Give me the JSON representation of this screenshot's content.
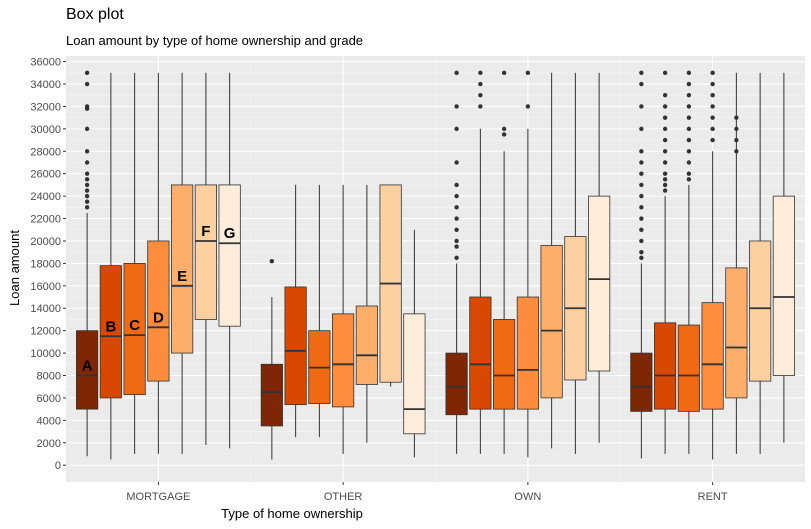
{
  "title": "Box plot",
  "subtitle": "Loan amount by type of home ownership and grade",
  "chart_data": {
    "type": "box",
    "title": "Box plot",
    "subtitle": "Loan amount by type of home ownership and grade",
    "xlabel": "Type of home ownership",
    "ylabel": "Loan amount",
    "ylim": [
      -1500,
      36500
    ],
    "yticks": [
      0,
      2000,
      4000,
      6000,
      8000,
      10000,
      12000,
      14000,
      16000,
      18000,
      20000,
      22000,
      24000,
      26000,
      28000,
      30000,
      32000,
      34000,
      36000
    ],
    "grid": true,
    "legend": "none",
    "categories": [
      "MORTGAGE",
      "OTHER",
      "OWN",
      "RENT"
    ],
    "grades": [
      "A",
      "B",
      "C",
      "D",
      "E",
      "F",
      "G"
    ],
    "grade_colors": [
      "#7f2704",
      "#d94801",
      "#f16913",
      "#fd8d3c",
      "#fdae6b",
      "#fdd0a2",
      "#feeddb"
    ],
    "boxes": [
      {
        "category": "MORTGAGE",
        "grade": "A",
        "min": 800,
        "q1": 5000,
        "median": 8000,
        "q3": 12000,
        "max": 22500,
        "outliers": [
          23000,
          23500,
          24000,
          24500,
          25000,
          25500,
          26000,
          27000,
          28000,
          30000,
          31800,
          32000,
          34000,
          35000
        ]
      },
      {
        "category": "MORTGAGE",
        "grade": "B",
        "min": 500,
        "q1": 6000,
        "median": 11500,
        "q3": 17800,
        "max": 35000,
        "outliers": []
      },
      {
        "category": "MORTGAGE",
        "grade": "C",
        "min": 1000,
        "q1": 6300,
        "median": 11600,
        "q3": 18000,
        "max": 35000,
        "outliers": []
      },
      {
        "category": "MORTGAGE",
        "grade": "D",
        "min": 1000,
        "q1": 7500,
        "median": 12300,
        "q3": 20000,
        "max": 35000,
        "outliers": []
      },
      {
        "category": "MORTGAGE",
        "grade": "E",
        "min": 1000,
        "q1": 10000,
        "median": 16000,
        "q3": 25000,
        "max": 35000,
        "outliers": []
      },
      {
        "category": "MORTGAGE",
        "grade": "F",
        "min": 1800,
        "q1": 13000,
        "median": 20000,
        "q3": 25000,
        "max": 35000,
        "outliers": []
      },
      {
        "category": "MORTGAGE",
        "grade": "G",
        "min": 1500,
        "q1": 12400,
        "median": 19800,
        "q3": 25000,
        "max": 35000,
        "outliers": []
      },
      {
        "category": "OTHER",
        "grade": "A",
        "min": 500,
        "q1": 3500,
        "median": 6500,
        "q3": 9000,
        "max": 15000,
        "outliers": [
          18200
        ]
      },
      {
        "category": "OTHER",
        "grade": "B",
        "min": 2500,
        "q1": 5400,
        "median": 10200,
        "q3": 15900,
        "max": 25000,
        "outliers": []
      },
      {
        "category": "OTHER",
        "grade": "C",
        "min": 2500,
        "q1": 5500,
        "median": 8700,
        "q3": 12000,
        "max": 25000,
        "outliers": []
      },
      {
        "category": "OTHER",
        "grade": "D",
        "min": 1000,
        "q1": 5200,
        "median": 9000,
        "q3": 13500,
        "max": 25000,
        "outliers": []
      },
      {
        "category": "OTHER",
        "grade": "E",
        "min": 2000,
        "q1": 7200,
        "median": 9800,
        "q3": 14200,
        "max": 25000,
        "outliers": []
      },
      {
        "category": "OTHER",
        "grade": "F",
        "min": 7000,
        "q1": 7400,
        "median": 16200,
        "q3": 25000,
        "max": 25000,
        "outliers": []
      },
      {
        "category": "OTHER",
        "grade": "G",
        "min": 700,
        "q1": 2800,
        "median": 5000,
        "q3": 13500,
        "max": 21000,
        "outliers": []
      },
      {
        "category": "OWN",
        "grade": "A",
        "min": 1000,
        "q1": 4500,
        "median": 7000,
        "q3": 10000,
        "max": 18000,
        "outliers": [
          18500,
          19500,
          20000,
          21000,
          22000,
          23000,
          24000,
          25000,
          27000,
          30000,
          32000,
          35000
        ]
      },
      {
        "category": "OWN",
        "grade": "B",
        "min": 1000,
        "q1": 5000,
        "median": 9000,
        "q3": 15000,
        "max": 30000,
        "outliers": [
          32000,
          33000,
          34000,
          35000
        ]
      },
      {
        "category": "OWN",
        "grade": "C",
        "min": 1000,
        "q1": 5000,
        "median": 8000,
        "q3": 13000,
        "max": 28000,
        "outliers": [
          29500,
          30000,
          35000
        ]
      },
      {
        "category": "OWN",
        "grade": "D",
        "min": 700,
        "q1": 5000,
        "median": 8500,
        "q3": 15000,
        "max": 30000,
        "outliers": [
          32000,
          35000
        ]
      },
      {
        "category": "OWN",
        "grade": "E",
        "min": 1500,
        "q1": 6000,
        "median": 12000,
        "q3": 19600,
        "max": 35000,
        "outliers": []
      },
      {
        "category": "OWN",
        "grade": "F",
        "min": 1000,
        "q1": 7600,
        "median": 14000,
        "q3": 20400,
        "max": 35000,
        "outliers": []
      },
      {
        "category": "OWN",
        "grade": "G",
        "min": 2000,
        "q1": 8400,
        "median": 16600,
        "q3": 24000,
        "max": 35000,
        "outliers": []
      },
      {
        "category": "RENT",
        "grade": "A",
        "min": 600,
        "q1": 4800,
        "median": 7000,
        "q3": 10000,
        "max": 18000,
        "outliers": [
          18500,
          19000,
          20000,
          21000,
          22000,
          23000,
          24000,
          25000,
          26000,
          27000,
          28000,
          30000,
          32000,
          34000,
          35000
        ]
      },
      {
        "category": "RENT",
        "grade": "B",
        "min": 1000,
        "q1": 5000,
        "median": 8000,
        "q3": 12700,
        "max": 24000,
        "outliers": [
          24500,
          25000,
          25500,
          26000,
          27000,
          28000,
          29000,
          30000,
          31000,
          32000,
          33000,
          35000
        ]
      },
      {
        "category": "RENT",
        "grade": "C",
        "min": 1000,
        "q1": 4800,
        "median": 8000,
        "q3": 12500,
        "max": 25000,
        "outliers": [
          25500,
          26000,
          27000,
          28000,
          29000,
          30000,
          31000,
          32000,
          33000,
          34000,
          35000
        ]
      },
      {
        "category": "RENT",
        "grade": "D",
        "min": 500,
        "q1": 5000,
        "median": 9000,
        "q3": 14500,
        "max": 28000,
        "outliers": [
          29000,
          30000,
          31000,
          32000,
          33000,
          34000,
          35000
        ]
      },
      {
        "category": "RENT",
        "grade": "E",
        "min": 1000,
        "q1": 6000,
        "median": 10500,
        "q3": 17600,
        "max": 35000,
        "outliers": [
          28000,
          29000,
          30000,
          31000
        ]
      },
      {
        "category": "RENT",
        "grade": "F",
        "min": 1000,
        "q1": 7500,
        "median": 14000,
        "q3": 20000,
        "max": 35000,
        "outliers": []
      },
      {
        "category": "RENT",
        "grade": "G",
        "min": 2000,
        "q1": 8000,
        "median": 15000,
        "q3": 24000,
        "max": 35000,
        "outliers": []
      }
    ]
  }
}
